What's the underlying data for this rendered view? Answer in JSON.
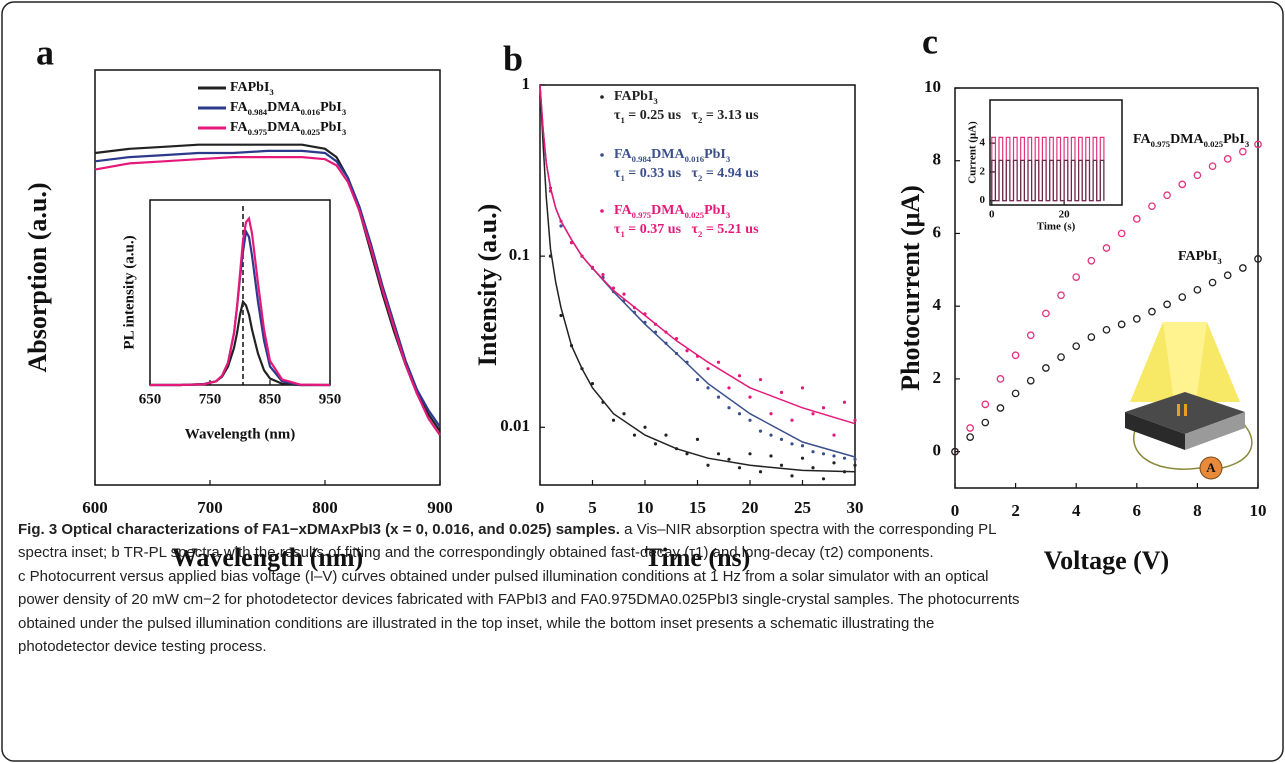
{
  "chart_data": [
    {
      "type": "line",
      "panel_label": "a",
      "xlabel": "Wavelength (nm)",
      "ylabel": "Absorption (a.u.)",
      "xlim": [
        600,
        900
      ],
      "xticks": [
        600,
        700,
        800,
        900
      ],
      "ylim": [
        0,
        1
      ],
      "x": [
        600,
        630,
        660,
        690,
        720,
        750,
        780,
        800,
        810,
        820,
        830,
        840,
        850,
        860,
        870,
        880,
        890,
        900
      ],
      "series": [
        {
          "name": "FAPbI3",
          "color": "#222222",
          "values": [
            0.8,
            0.81,
            0.815,
            0.82,
            0.82,
            0.82,
            0.82,
            0.81,
            0.79,
            0.74,
            0.66,
            0.56,
            0.46,
            0.37,
            0.29,
            0.22,
            0.17,
            0.13
          ]
        },
        {
          "name": "FA0.984DMA0.016PbI3",
          "color": "#2b3a8c",
          "values": [
            0.78,
            0.79,
            0.795,
            0.8,
            0.8,
            0.805,
            0.805,
            0.8,
            0.78,
            0.74,
            0.67,
            0.58,
            0.48,
            0.39,
            0.3,
            0.23,
            0.18,
            0.14
          ]
        },
        {
          "name": "FA0.975DMA0.025PbI3",
          "color": "#e6197a",
          "values": [
            0.76,
            0.775,
            0.78,
            0.785,
            0.79,
            0.79,
            0.79,
            0.785,
            0.77,
            0.73,
            0.66,
            0.57,
            0.47,
            0.38,
            0.29,
            0.22,
            0.16,
            0.12
          ]
        }
      ],
      "inset": {
        "type": "line",
        "xlabel": "Wavelength (nm)",
        "ylabel": "PL intensity (a.u.)",
        "xlim": [
          650,
          950
        ],
        "xticks": [
          650,
          750,
          850,
          950
        ],
        "ylim": [
          0,
          1
        ],
        "vline": 805,
        "x": [
          650,
          700,
          740,
          760,
          770,
          780,
          790,
          795,
          800,
          805,
          810,
          815,
          820,
          830,
          840,
          850,
          870,
          900,
          950
        ],
        "series": [
          {
            "color": "#222222",
            "values": [
              0,
              0,
              0.005,
              0.02,
              0.045,
              0.1,
              0.2,
              0.28,
              0.38,
              0.45,
              0.43,
              0.38,
              0.3,
              0.17,
              0.08,
              0.035,
              0.007,
              0,
              0
            ]
          },
          {
            "color": "#2b3a8c",
            "values": [
              0,
              0,
              0.005,
              0.02,
              0.05,
              0.12,
              0.28,
              0.42,
              0.58,
              0.72,
              0.83,
              0.8,
              0.7,
              0.45,
              0.24,
              0.1,
              0.02,
              0,
              0
            ]
          },
          {
            "color": "#e6197a",
            "values": [
              0,
              0,
              0.004,
              0.02,
              0.05,
              0.12,
              0.28,
              0.42,
              0.6,
              0.78,
              0.88,
              0.9,
              0.82,
              0.55,
              0.3,
              0.13,
              0.03,
              0.002,
              0
            ]
          }
        ]
      }
    },
    {
      "type": "scatter",
      "panel_label": "b",
      "xlabel": "Time (ns)",
      "ylabel": "Intensity (a.u.)",
      "log_y": true,
      "xlim": [
        0,
        30
      ],
      "xticks": [
        0,
        5,
        10,
        15,
        20,
        25,
        30
      ],
      "ylim": [
        0.0046,
        1
      ],
      "yticks": [
        0.01,
        0.1,
        1
      ],
      "x": [
        1,
        2,
        3,
        4,
        5,
        6,
        7,
        8,
        9,
        10,
        11,
        12,
        13,
        14,
        15,
        16,
        17,
        18,
        19,
        20,
        21,
        22,
        23,
        24,
        25,
        26,
        27,
        28,
        29,
        30
      ],
      "fit_x": [
        0,
        0.3,
        0.6,
        1,
        1.5,
        2,
        3,
        4,
        5,
        7,
        10,
        13,
        16,
        20,
        25,
        30
      ],
      "series": [
        {
          "name": "FAPbI3",
          "annotation": "τ1 = 0.25 us   τ2 = 3.13 us",
          "color": "#222222",
          "values": [
            0.1,
            0.045,
            0.03,
            0.022,
            0.018,
            0.014,
            0.011,
            0.012,
            0.009,
            0.01,
            0.008,
            0.009,
            0.0075,
            0.007,
            0.0085,
            0.006,
            0.007,
            0.0065,
            0.0058,
            0.007,
            0.0055,
            0.0068,
            0.006,
            0.0052,
            0.0066,
            0.0058,
            0.005,
            0.0062,
            0.0055,
            0.006
          ],
          "fit": [
            1,
            0.45,
            0.22,
            0.11,
            0.07,
            0.05,
            0.03,
            0.022,
            0.017,
            0.012,
            0.009,
            0.0075,
            0.0066,
            0.006,
            0.0056,
            0.0055
          ]
        },
        {
          "name": "FA0.984DMA0.016PbI3",
          "annotation": "τ1 = 0.33 us   τ2 = 4.94 us",
          "color": "#3a4f8c",
          "values": [
            0.25,
            0.15,
            0.12,
            0.1,
            0.085,
            0.075,
            0.062,
            0.055,
            0.047,
            0.041,
            0.036,
            0.031,
            0.027,
            0.024,
            0.019,
            0.017,
            0.015,
            0.013,
            0.012,
            0.011,
            0.0095,
            0.009,
            0.0085,
            0.008,
            0.0078,
            0.0072,
            0.007,
            0.0068,
            0.0066,
            0.0065
          ],
          "fit": [
            1,
            0.55,
            0.35,
            0.25,
            0.19,
            0.16,
            0.125,
            0.1,
            0.085,
            0.062,
            0.04,
            0.027,
            0.018,
            0.012,
            0.0082,
            0.0067
          ]
        },
        {
          "name": "FA0.975DMA0.025PbI3",
          "annotation": "τ1 = 0.37 us   τ2 = 5.21 us",
          "color": "#e6197a",
          "values": [
            0.24,
            0.16,
            0.12,
            0.1,
            0.086,
            0.078,
            0.065,
            0.06,
            0.05,
            0.046,
            0.04,
            0.036,
            0.033,
            0.028,
            0.026,
            0.022,
            0.024,
            0.017,
            0.02,
            0.015,
            0.019,
            0.012,
            0.016,
            0.011,
            0.017,
            0.012,
            0.013,
            0.009,
            0.014,
            0.011
          ],
          "fit": [
            1,
            0.55,
            0.35,
            0.25,
            0.19,
            0.16,
            0.125,
            0.1,
            0.085,
            0.063,
            0.045,
            0.032,
            0.024,
            0.017,
            0.013,
            0.0105
          ]
        }
      ]
    },
    {
      "type": "scatter",
      "marker": "open-circle",
      "panel_label": "c",
      "xlabel": "Voltage (V)",
      "ylabel": "Photocurrent (μA)",
      "xlim": [
        0,
        10
      ],
      "xticks": [
        0,
        2,
        4,
        6,
        8,
        10
      ],
      "ylim": [
        -1,
        10
      ],
      "yticks": [
        0,
        2,
        4,
        6,
        8,
        10
      ],
      "x": [
        0,
        0.5,
        1,
        1.5,
        2,
        2.5,
        3,
        3.5,
        4,
        4.5,
        5,
        5.5,
        6,
        6.5,
        7,
        7.5,
        8,
        8.5,
        9,
        9.5,
        10
      ],
      "series": [
        {
          "name": "FA0.975DMA0.025PbI3",
          "color": "#e2347f",
          "values": [
            0,
            0.65,
            1.3,
            2.0,
            2.65,
            3.2,
            3.8,
            4.3,
            4.8,
            5.25,
            5.6,
            6.0,
            6.4,
            6.75,
            7.05,
            7.35,
            7.6,
            7.85,
            8.05,
            8.25,
            8.45
          ]
        },
        {
          "name": "FAPbI3",
          "color": "#222222",
          "values": [
            0,
            0.4,
            0.8,
            1.2,
            1.6,
            1.95,
            2.3,
            2.6,
            2.9,
            3.15,
            3.35,
            3.5,
            3.65,
            3.85,
            4.05,
            4.25,
            4.45,
            4.65,
            4.85,
            5.05,
            5.3
          ]
        }
      ],
      "device_label": "A",
      "inset": {
        "type": "line",
        "xlabel": "Time (s)",
        "ylabel": "Current (μA)",
        "xlim": [
          -0.5,
          36
        ],
        "xticks": [
          0,
          20
        ],
        "ylim": [
          -0.3,
          7
        ],
        "yticks": [
          0,
          2,
          4
        ],
        "x": [
          0,
          0,
          1,
          1,
          2,
          2,
          3,
          3,
          4,
          4,
          5,
          5,
          6,
          6,
          7,
          7,
          8,
          8,
          9,
          9,
          10,
          10,
          11,
          11,
          12,
          12,
          13,
          13,
          14,
          14,
          15,
          15,
          16,
          16,
          17,
          17,
          18,
          18,
          19,
          19,
          20,
          20,
          21,
          21,
          22,
          22,
          23,
          23,
          24,
          24,
          25,
          25,
          26,
          26,
          27,
          27,
          28,
          28,
          29,
          29,
          30,
          30,
          31,
          31
        ],
        "series": [
          {
            "color": "#e2347f",
            "values": [
              0,
              4.4,
              4.4,
              0,
              0,
              4.4,
              4.4,
              0,
              0,
              4.4,
              4.4,
              0,
              0,
              4.4,
              4.4,
              0,
              0,
              4.4,
              4.4,
              0,
              0,
              4.4,
              4.4,
              0,
              0,
              4.4,
              4.4,
              0,
              0,
              4.4,
              4.4,
              0,
              0,
              4.4,
              4.4,
              0,
              0,
              4.4,
              4.4,
              0,
              0,
              4.4,
              4.4,
              0,
              0,
              4.4,
              4.4,
              0,
              0,
              4.4,
              4.4,
              0,
              0,
              4.4,
              4.4,
              0,
              0,
              4.4,
              4.4,
              0,
              0,
              4.4,
              4.4,
              0
            ]
          },
          {
            "color": "#6a2a4a",
            "values": [
              0,
              2.8,
              2.8,
              0,
              0,
              2.8,
              2.8,
              0,
              0,
              2.8,
              2.8,
              0,
              0,
              2.8,
              2.8,
              0,
              0,
              2.8,
              2.8,
              0,
              0,
              2.8,
              2.8,
              0,
              0,
              2.8,
              2.8,
              0,
              0,
              2.8,
              2.8,
              0,
              0,
              2.8,
              2.8,
              0,
              0,
              2.8,
              2.8,
              0,
              0,
              2.8,
              2.8,
              0,
              0,
              2.8,
              2.8,
              0,
              0,
              2.8,
              2.8,
              0,
              0,
              2.8,
              2.8,
              0,
              0,
              2.8,
              2.8,
              0,
              0,
              2.8,
              2.8,
              0
            ]
          }
        ]
      }
    }
  ],
  "caption": {
    "title": "Fig. 3 Optical characterizations of FA1−xDMAxPbI3 (x = 0, 0.016, and 0.025) samples.",
    "lines": [
      " a Vis–NIR absorption spectra with the corresponding PL",
      "spectra inset; b TR-PL spectra with the results of fitting and the correspondingly obtained fast-decay (τ1) and long-decay (τ2) components.",
      "c Photocurrent versus applied bias voltage (I–V) curves obtained under pulsed illumination conditions at 1 Hz from a solar simulator with an optical",
      "power density of 20 mW cm−2 for photodetector devices fabricated with FAPbI3 and FA0.975DMA0.025PbI3 single-crystal samples. The photocurrents",
      "obtained under the pulsed illumination conditions are illustrated in the top inset, while the bottom inset presents a schematic illustrating the",
      "photodetector device testing process."
    ]
  }
}
